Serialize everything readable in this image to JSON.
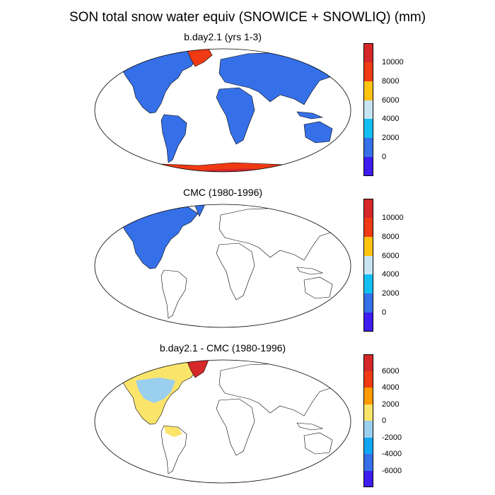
{
  "title": "SON total snow water equiv (SNOWICE + SNOWLIQ) (mm)",
  "panels": [
    {
      "id": "model",
      "title": "b.day2.1 (yrs 1-3)",
      "colorbar": {
        "colors": [
          "#d62828",
          "#ef3a14",
          "#ffc20e",
          "#c8e4f4",
          "#12bff2",
          "#3670e8",
          "#3d1df0"
        ],
        "labels": [
          "10000",
          "8000",
          "6000",
          "4000",
          "2000",
          "0"
        ]
      }
    },
    {
      "id": "obs",
      "title": "CMC (1980-1996)",
      "colorbar": {
        "colors": [
          "#d62828",
          "#ef3a14",
          "#ffc20e",
          "#c8e4f4",
          "#12bff2",
          "#3670e8",
          "#3d1df0"
        ],
        "labels": [
          "10000",
          "8000",
          "6000",
          "4000",
          "2000",
          "0"
        ]
      }
    },
    {
      "id": "diff",
      "title": "b.day2.1 - CMC (1980-1996)",
      "colorbar": {
        "colors": [
          "#d62828",
          "#ef3a14",
          "#ff9a00",
          "#fbe46a",
          "#9ad0ee",
          "#12a7f2",
          "#3670e8",
          "#3d1df0"
        ],
        "labels": [
          "6000",
          "4000",
          "2000",
          "0",
          "-2000",
          "-4000",
          "-6000"
        ]
      }
    }
  ]
}
